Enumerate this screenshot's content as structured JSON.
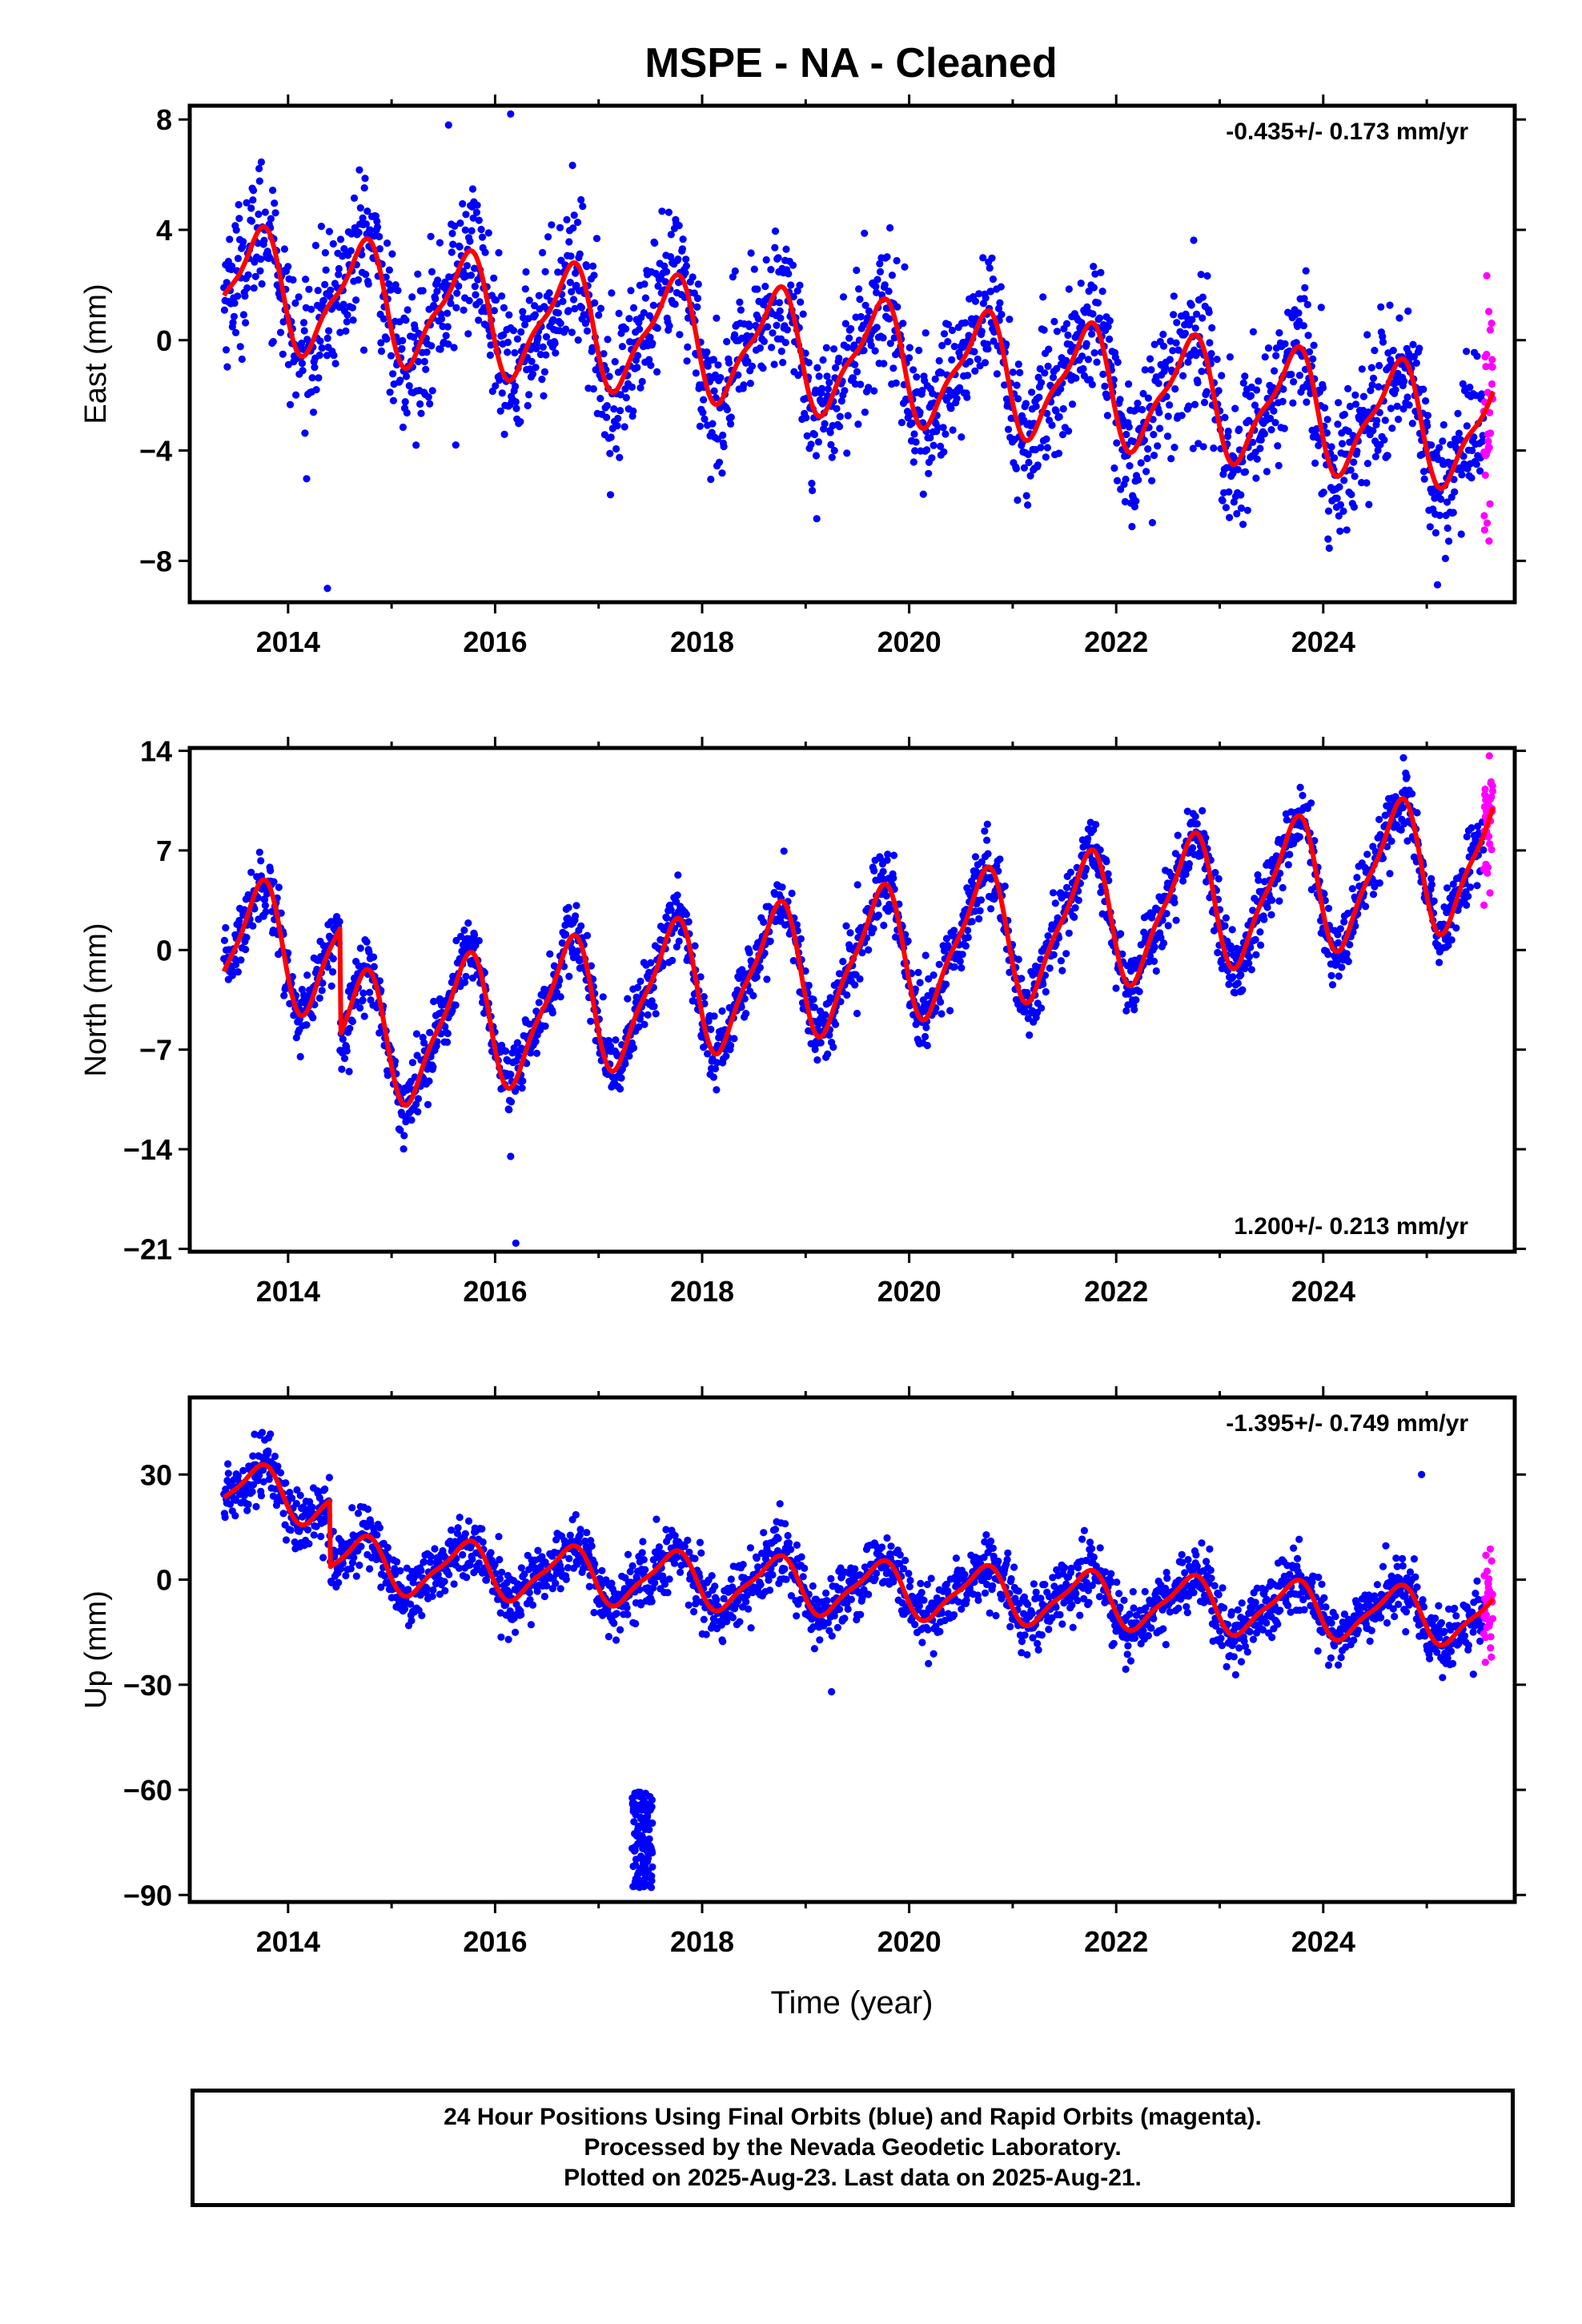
{
  "figure": {
    "title": "MSPE  - NA - Cleaned",
    "xlabel": "Time (year)",
    "footer": [
      "24 Hour Positions Using Final Orbits (blue) and Rapid Orbits (magenta).",
      "Processed by the Nevada Geodetic Laboratory.",
      "Plotted on 2025-Aug-23. Last data on 2025-Aug-21."
    ]
  },
  "colors": {
    "final": "#0000ff",
    "rapid": "#ff00ff",
    "model": "#ff0000",
    "axis": "#000000"
  },
  "chart_data": [
    {
      "type": "scatter",
      "component": "east",
      "ylabel": "East (mm)",
      "rate_label": "-0.435+/- 0.173 mm/yr",
      "rate_position": "top-right",
      "xlim": [
        2013.05,
        2025.85
      ],
      "ylim": [
        -9.5,
        8.5
      ],
      "xticks": [
        2014,
        2016,
        2018,
        2020,
        2022,
        2024
      ],
      "yticks": [
        8,
        4,
        0,
        -4,
        -8
      ],
      "ytick_labels": [
        "8",
        "4",
        "0",
        "−4",
        "−8"
      ],
      "data_start": 2013.38,
      "data_end": 2025.64,
      "rapid_start": 2025.55,
      "model": {
        "trend_mm_per_yr": -0.435,
        "seasonal_annual_amp": 2.0,
        "seasonal_semiannual_amp": 0.6,
        "offset": 2.0,
        "scatter_std": 1.3
      },
      "outliers": [
        [
          2014.38,
          -9.0
        ],
        [
          2015.62,
          -3.8
        ],
        [
          2016.15,
          8.2
        ],
        [
          2015.55,
          7.8
        ]
      ]
    },
    {
      "type": "scatter",
      "component": "north",
      "ylabel": "North (mm)",
      "rate_label": "1.200+/- 0.213 mm/yr",
      "rate_position": "bottom-right",
      "xlim": [
        2013.05,
        2025.85
      ],
      "ylim": [
        -21.2,
        14.2
      ],
      "xticks": [
        2014,
        2016,
        2018,
        2020,
        2022,
        2024
      ],
      "yticks": [
        14,
        7,
        0,
        -7,
        -14,
        -21
      ],
      "ytick_labels": [
        "14",
        "7",
        "0",
        "−7",
        "−14",
        "−21"
      ],
      "data_start": 2013.38,
      "data_end": 2025.64,
      "rapid_start": 2025.55,
      "model": {
        "trend_mm_per_yr": 1.2,
        "seasonal_annual_amp": 4.5,
        "seasonal_semiannual_amp": 1.2,
        "offset": -8.0,
        "scatter_std": 1.2,
        "early_offset_until": 2014.5,
        "early_offset_mm": 7.5
      },
      "outliers": [
        [
          2016.2,
          -20.6
        ],
        [
          2016.15,
          -14.5
        ]
      ]
    },
    {
      "type": "scatter",
      "component": "up",
      "ylabel": "Up (mm)",
      "rate_label": "-1.395+/- 0.749 mm/yr",
      "rate_position": "top-right",
      "xlim": [
        2013.05,
        2025.85
      ],
      "ylim": [
        -92,
        52
      ],
      "xticks": [
        2014,
        2016,
        2018,
        2020,
        2022,
        2024
      ],
      "yticks": [
        30,
        0,
        -30,
        -60,
        -90
      ],
      "ytick_labels": [
        "30",
        "0",
        "−30",
        "−60",
        "−90"
      ],
      "data_start": 2013.38,
      "data_end": 2025.64,
      "rapid_start": 2025.55,
      "model": {
        "trend_mm_per_yr": -1.395,
        "seasonal_annual_amp": 7.5,
        "seasonal_semiannual_amp": 2.0,
        "offset": 6.0,
        "scatter_std": 4.5,
        "early_offset_until": 2014.4,
        "early_offset_mm": 19
      },
      "anomaly": {
        "x_range": [
          2017.32,
          2017.52
        ],
        "y_range": [
          -88,
          -60
        ]
      },
      "outliers": [
        [
          2013.75,
          42
        ],
        [
          2024.95,
          30
        ],
        [
          2019.25,
          -32
        ],
        [
          2025.45,
          -27
        ]
      ]
    }
  ]
}
